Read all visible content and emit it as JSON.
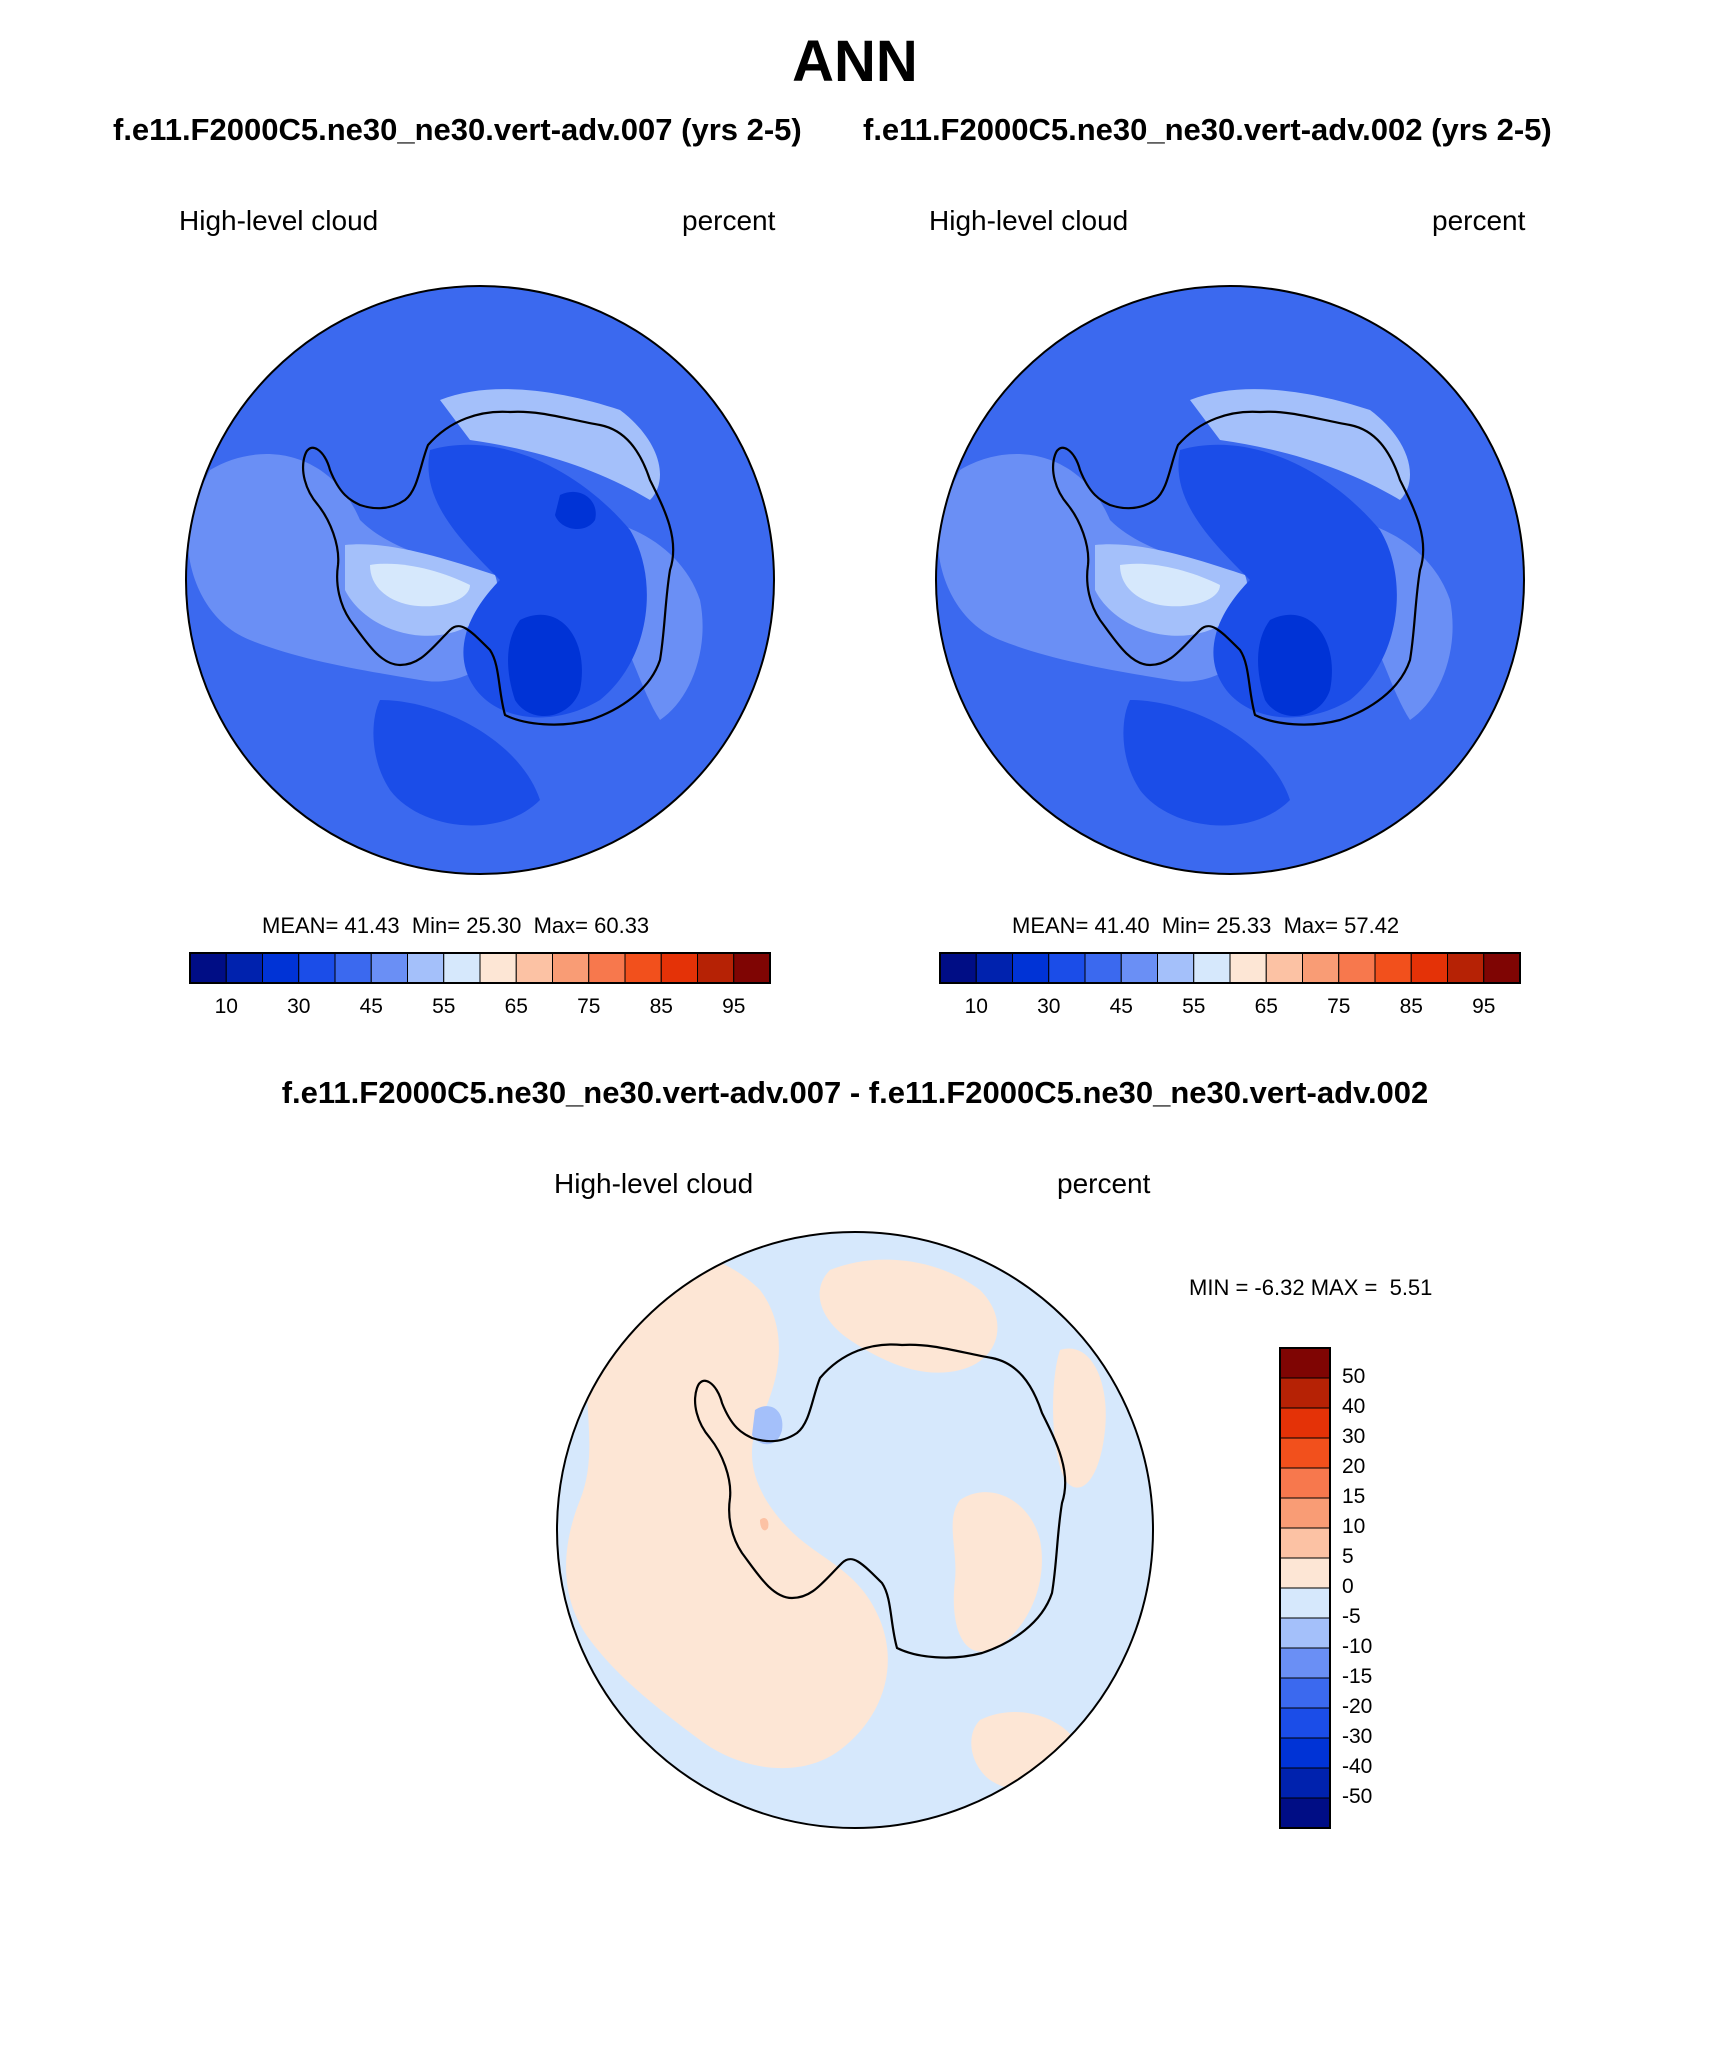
{
  "title": "ANN",
  "case1": {
    "title": "f.e11.F2000C5.ne30_ne30.vert-adv.007 (yrs 2-5)",
    "variable": "High-level cloud",
    "units": "percent",
    "stats": {
      "mean_label": "MEAN=",
      "mean": "41.43",
      "min_label": "Min=",
      "min": "25.30",
      "max_label": "Max=",
      "max": "60.33"
    }
  },
  "case2": {
    "title": "f.e11.F2000C5.ne30_ne30.vert-adv.002 (yrs 2-5)",
    "variable": "High-level cloud",
    "units": "percent",
    "stats": {
      "mean_label": "MEAN=",
      "mean": "41.40",
      "min_label": "Min=",
      "min": "25.33",
      "max_label": "Max=",
      "max": "57.42"
    }
  },
  "diff": {
    "title": "f.e11.F2000C5.ne30_ne30.vert-adv.007 - f.e11.F2000C5.ne30_ne30.vert-adv.002",
    "variable": "High-level cloud",
    "units": "percent",
    "stats": {
      "min_label": "MIN =",
      "min": "-6.32",
      "max_label": "MAX =",
      "max": "5.51"
    }
  },
  "abs_colorbar": {
    "colors": [
      "#000d85",
      "#0022ae",
      "#0033d6",
      "#1b4de8",
      "#3b69ef",
      "#6a8ff5",
      "#a4c0fa",
      "#d6e8fc",
      "#fde6d5",
      "#fcc2a4",
      "#f99c75",
      "#f7784d",
      "#f2501c",
      "#e43207",
      "#b62205",
      "#7f0503"
    ],
    "tick_labels": [
      "10",
      "30",
      "45",
      "55",
      "65",
      "75",
      "85",
      "95"
    ]
  },
  "diff_colorbar": {
    "colors": [
      "#7f0503",
      "#b62205",
      "#e43207",
      "#f2501c",
      "#f7784d",
      "#f99c75",
      "#fcc2a4",
      "#fde6d5",
      "#d6e8fc",
      "#a4c0fa",
      "#6a8ff5",
      "#3b69ef",
      "#1b4de8",
      "#0033d6",
      "#0022ae",
      "#000d85"
    ],
    "tick_labels": [
      "50",
      "40",
      "30",
      "20",
      "15",
      "10",
      "5",
      "0",
      "-5",
      "-10",
      "-15",
      "-20",
      "-30",
      "-40",
      "-50"
    ]
  },
  "map_colors": {
    "ocean_base": "#3b69ef",
    "deep": "#1b4de8",
    "deeper": "#0033d6",
    "light": "#6a8ff5",
    "lighter": "#a4c0fa",
    "lightest": "#d6e8fc",
    "diff_pos": "#fde6d5",
    "diff_neg": "#d6e8fc",
    "diff_neg2": "#a4c0fa",
    "diff_pos2": "#fcc2a4",
    "coast": "#000000"
  }
}
